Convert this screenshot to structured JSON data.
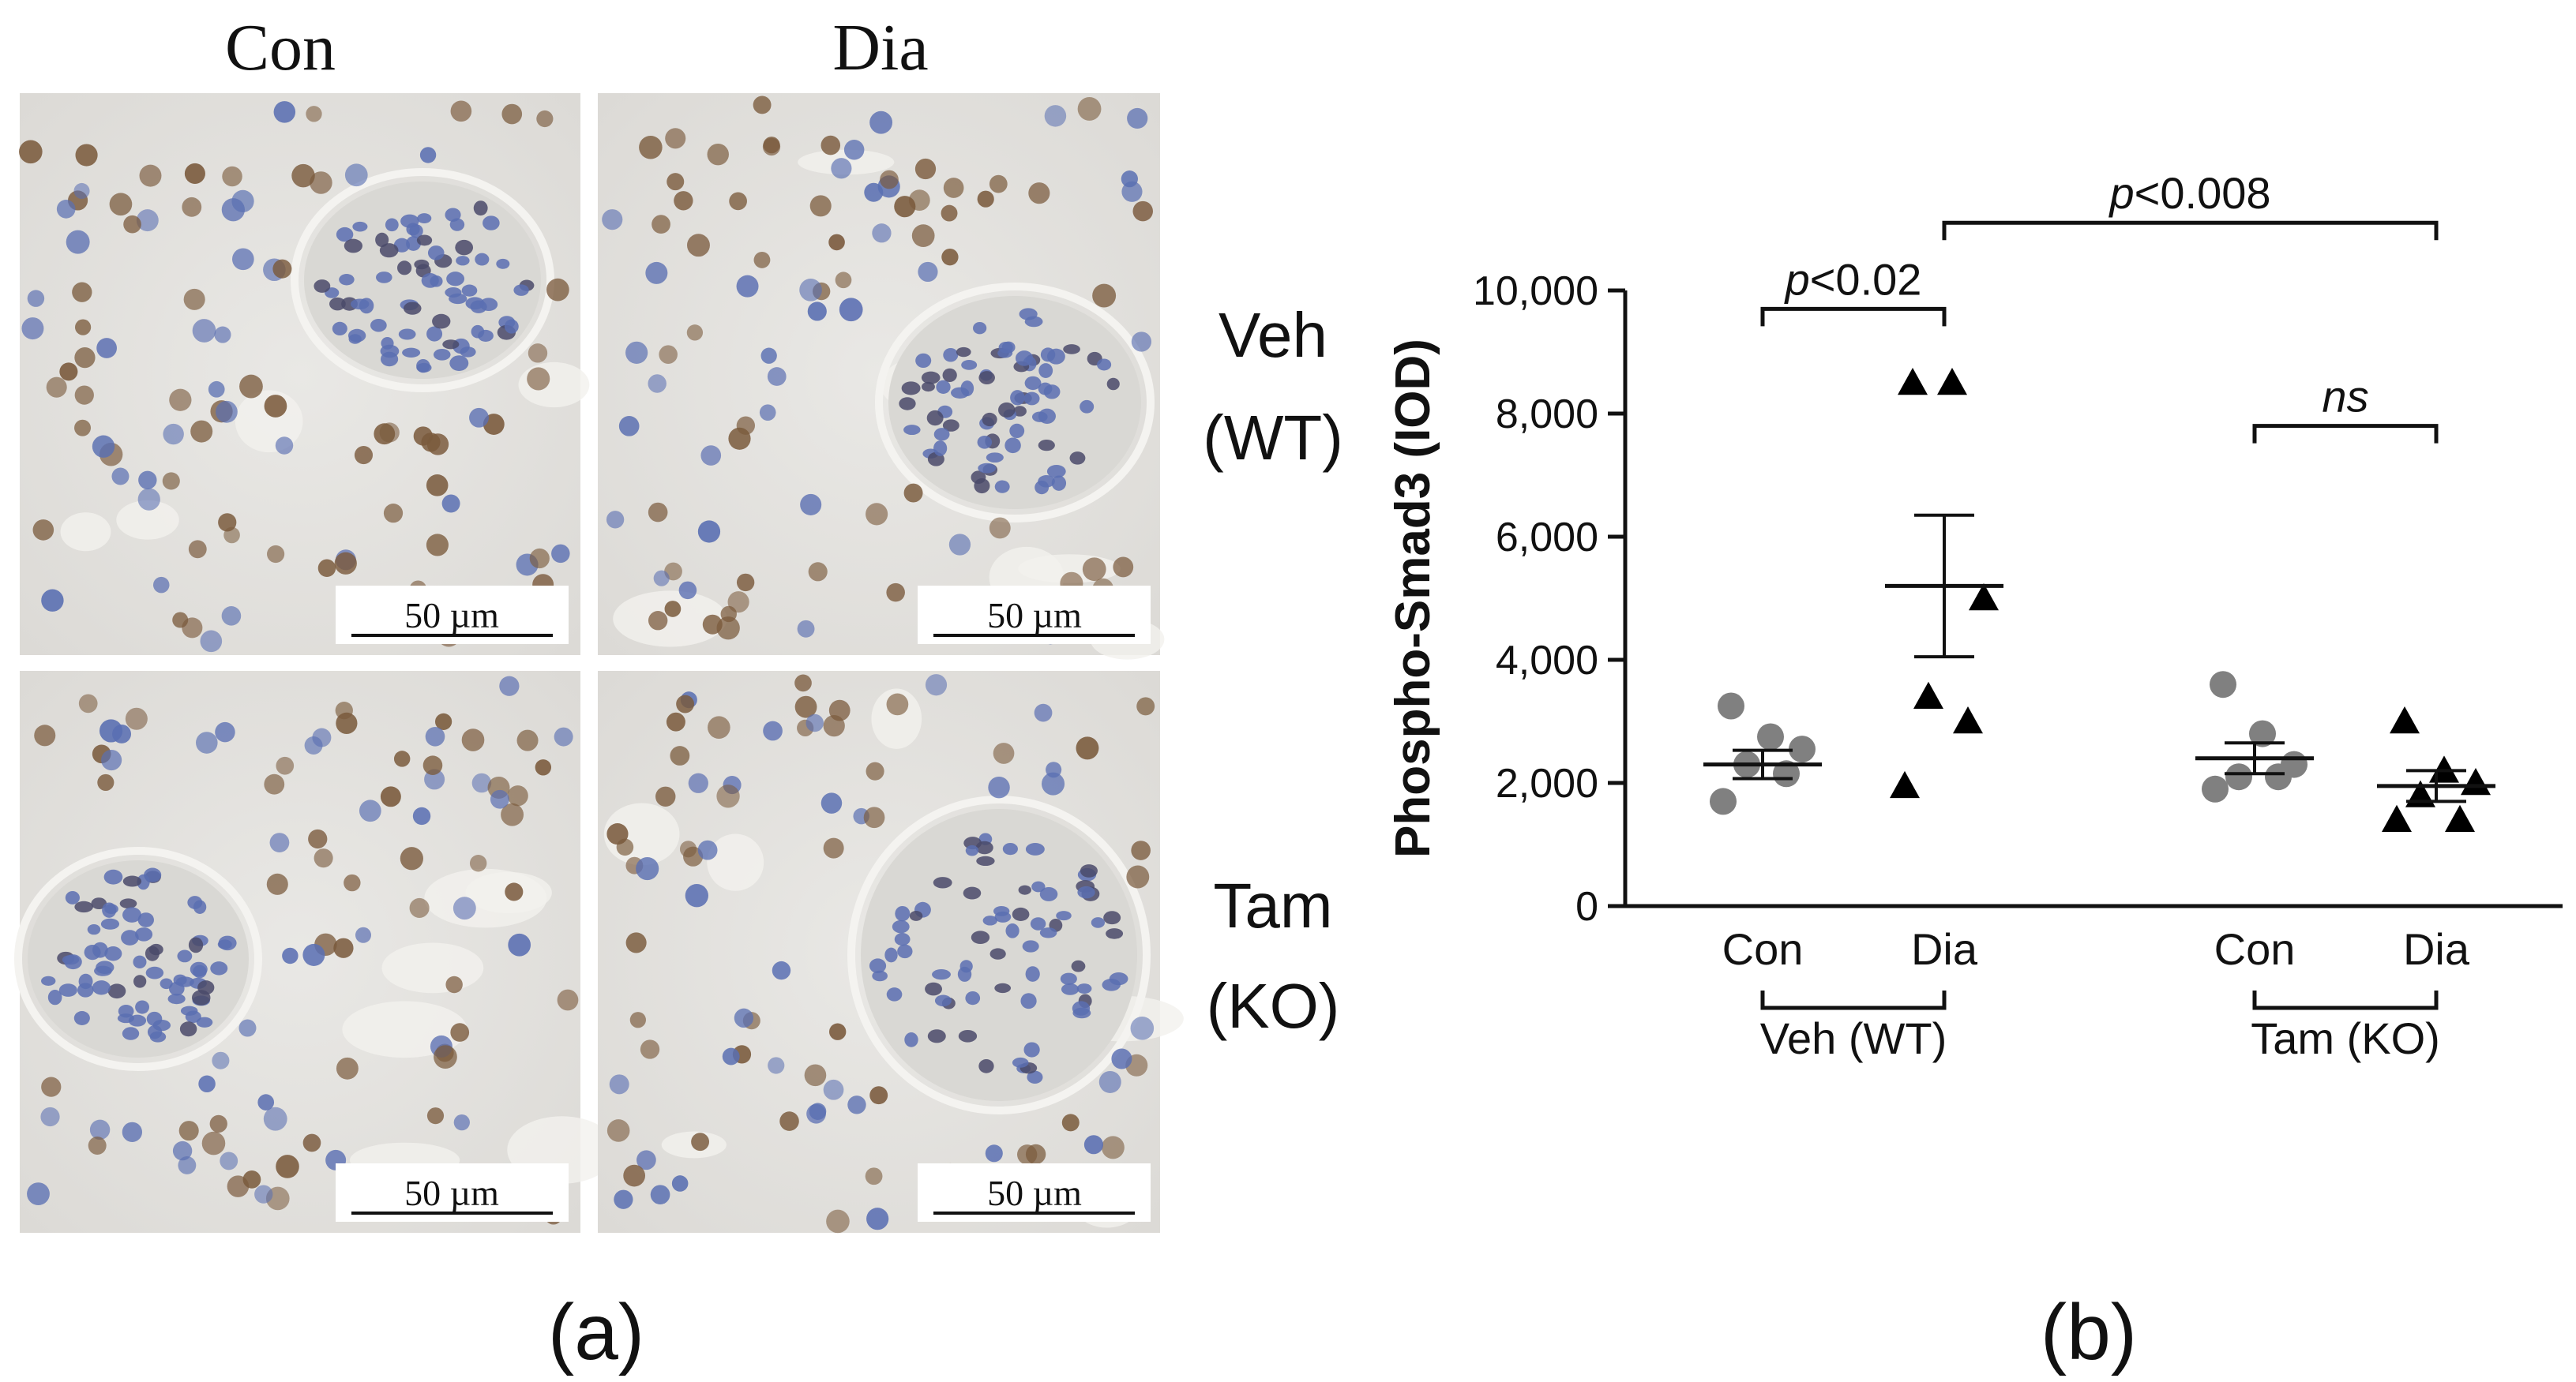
{
  "panel_a": {
    "column_headers": [
      "Con",
      "Dia"
    ],
    "row_labels": [
      {
        "line1": "Veh",
        "line2": "(WT)"
      },
      {
        "line1": "Tam",
        "line2": "(KO)"
      }
    ],
    "scale_bar_label": "50 µm",
    "panel_label": "(a)",
    "colors": {
      "tissue": "#e6e5e2",
      "brown_nuclei": "#7a5a3c",
      "blue_nuclei": "#5a6fb2"
    }
  },
  "panel_b": {
    "panel_label": "(b)"
  },
  "chart_data": {
    "type": "scatter",
    "ylabel": "Phospho-Smad3 (IOD)",
    "ylim": [
      0,
      10000
    ],
    "yticks": [
      0,
      2000,
      4000,
      6000,
      8000,
      10000
    ],
    "ytick_labels": [
      "0",
      "2,000",
      "4,000",
      "6,000",
      "8,000",
      "10,000"
    ],
    "categories": [
      "Con",
      "Dia",
      "Con",
      "Dia"
    ],
    "group_labels": [
      "Veh (WT)",
      "Tam (KO)"
    ],
    "series": [
      {
        "group": "Veh (WT)",
        "category": "Con",
        "marker": "circle",
        "color": "#808080",
        "points": [
          3250,
          2750,
          2550,
          2300,
          2150,
          1700
        ],
        "mean": 2300,
        "sem": 230
      },
      {
        "group": "Veh (WT)",
        "category": "Dia",
        "marker": "triangle",
        "color": "#000000",
        "points": [
          8500,
          8500,
          5000,
          3400,
          3000,
          1950
        ],
        "mean": 5200,
        "sem": 1150
      },
      {
        "group": "Tam (KO)",
        "category": "Con",
        "marker": "circle",
        "color": "#808080",
        "points": [
          3600,
          2800,
          2300,
          2100,
          2100,
          1900
        ],
        "mean": 2400,
        "sem": 250
      },
      {
        "group": "Tam (KO)",
        "category": "Dia",
        "marker": "triangle",
        "color": "#000000",
        "points": [
          3000,
          2200,
          2000,
          1800,
          1400,
          1400
        ],
        "mean": 1950,
        "sem": 250
      }
    ],
    "comparisons": [
      {
        "label": "p<0.02",
        "from": 0,
        "to": 1,
        "y": 9700
      },
      {
        "label": "p<0.008",
        "from": 1,
        "to": 3,
        "y": 11100
      },
      {
        "label": "ns",
        "from": 2,
        "to": 3,
        "y": 7800
      }
    ],
    "grid": false
  }
}
